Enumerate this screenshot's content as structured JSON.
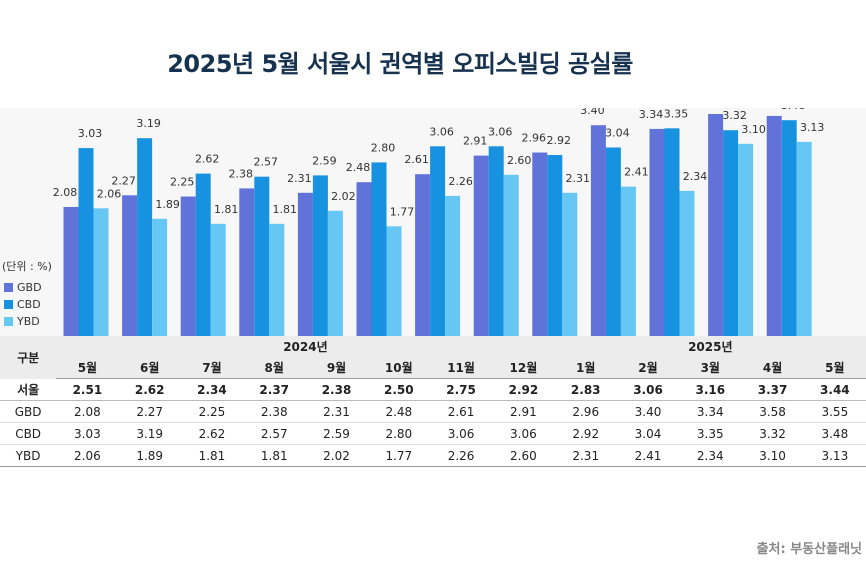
{
  "title": "2025년 5월 서울시 권역별 오피스빌딩 공실률",
  "unit_label": "(단위 : %)",
  "source": "출처: 부동산플래닛",
  "table": {
    "corner_label": "구분",
    "year_labels": {
      "y2024": "2024년",
      "y2025": "2025년"
    },
    "months": [
      "5월",
      "6월",
      "7월",
      "8월",
      "9월",
      "10월",
      "11월",
      "12월",
      "1월",
      "2월",
      "3월",
      "4월",
      "5월"
    ],
    "rows": [
      {
        "label": "서울",
        "values": [
          "2.51",
          "2.62",
          "2.34",
          "2.37",
          "2.38",
          "2.50",
          "2.75",
          "2.92",
          "2.83",
          "3.06",
          "3.16",
          "3.37",
          "3.44"
        ]
      },
      {
        "label": "GBD",
        "values": [
          "2.08",
          "2.27",
          "2.25",
          "2.38",
          "2.31",
          "2.48",
          "2.61",
          "2.91",
          "2.96",
          "3.40",
          "3.34",
          "3.58",
          "3.55"
        ]
      },
      {
        "label": "CBD",
        "values": [
          "3.03",
          "3.19",
          "2.62",
          "2.57",
          "2.59",
          "2.80",
          "3.06",
          "3.06",
          "2.92",
          "3.04",
          "3.35",
          "3.32",
          "3.48"
        ]
      },
      {
        "label": "YBD",
        "values": [
          "2.06",
          "1.89",
          "1.81",
          "1.81",
          "2.02",
          "1.77",
          "2.26",
          "2.60",
          "2.31",
          "2.41",
          "2.34",
          "3.10",
          "3.13"
        ]
      }
    ]
  },
  "chart_data": {
    "type": "bar",
    "categories": [
      "5월",
      "6월",
      "7월",
      "8월",
      "9월",
      "10월",
      "11월",
      "12월",
      "1월",
      "2월",
      "3월",
      "4월",
      "5월"
    ],
    "series": [
      {
        "name": "GBD",
        "color": "#6173d9",
        "values": [
          2.08,
          2.27,
          2.25,
          2.38,
          2.31,
          2.48,
          2.61,
          2.91,
          2.96,
          3.4,
          3.34,
          3.58,
          3.55
        ]
      },
      {
        "name": "CBD",
        "color": "#1792e0",
        "values": [
          3.03,
          3.19,
          2.62,
          2.57,
          2.59,
          2.8,
          3.06,
          3.06,
          2.92,
          3.04,
          3.35,
          3.32,
          3.48
        ]
      },
      {
        "name": "YBD",
        "color": "#66c7f4",
        "values": [
          2.06,
          1.89,
          1.81,
          1.81,
          2.02,
          1.77,
          2.26,
          2.6,
          2.31,
          2.41,
          2.34,
          3.1,
          3.13
        ]
      }
    ],
    "title": "2025년 5월 서울시 권역별 오피스빌딩 공실률",
    "ylabel": "(단위 : %)",
    "ylim": [
      0,
      3.6
    ],
    "legend_position": "left",
    "grid": false
  }
}
